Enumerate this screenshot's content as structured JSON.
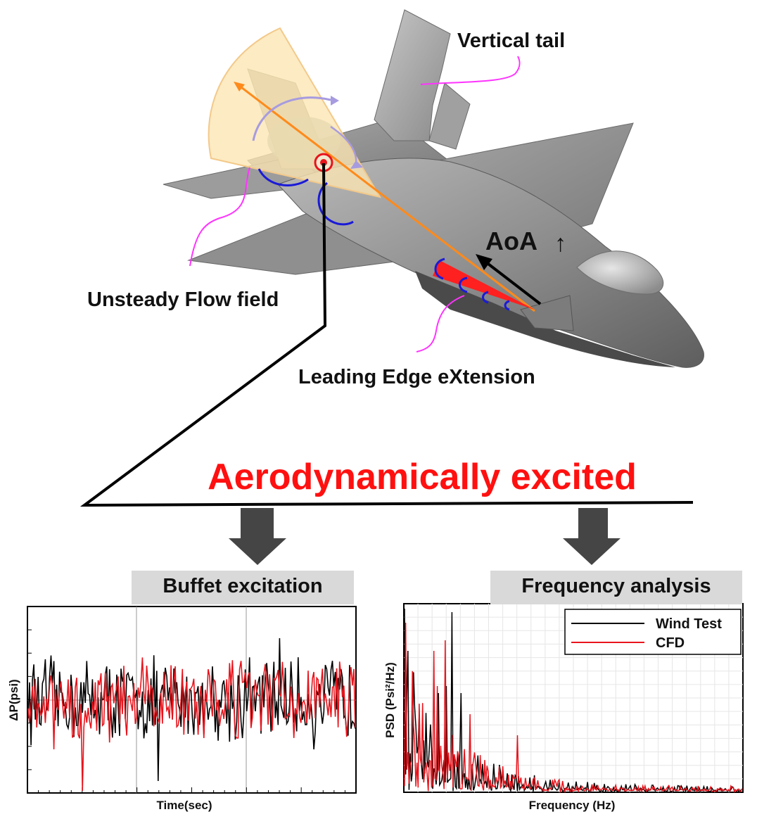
{
  "labels": {
    "vertical_tail": "Vertical tail",
    "unsteady_flow": "Unsteady Flow field",
    "aoa": "AoA",
    "aoa_arrow": "↑",
    "lex": "Leading Edge eXtension",
    "headline": "Aerodynamically excited"
  },
  "panels": {
    "left_title": "Buffet excitation",
    "right_title": "Frequency analysis"
  },
  "colors": {
    "headline": "#ff1010",
    "wind_test": "#000000",
    "cfd": "#e8141c",
    "callout": "#ff33ff",
    "header_box": "#d9d9d9"
  },
  "chart_data": [
    {
      "type": "line",
      "title": "",
      "xlabel": "Time(sec)",
      "ylabel": "ΔP(psi)",
      "grid": true,
      "series": [
        {
          "color": "#000000",
          "samples": 230,
          "description_only": false
        },
        {
          "color": "#e8141c",
          "samples": 230,
          "description_only": false
        }
      ]
    },
    {
      "type": "line",
      "title": "",
      "xlabel": "Frequency (Hz)",
      "ylabel": "PSD (Psi²/Hz)",
      "grid": true,
      "legend_position": "top-right",
      "series": [
        {
          "name": "Wind Test",
          "color": "#000000"
        },
        {
          "name": "CFD",
          "color": "#e8141c"
        }
      ]
    }
  ]
}
